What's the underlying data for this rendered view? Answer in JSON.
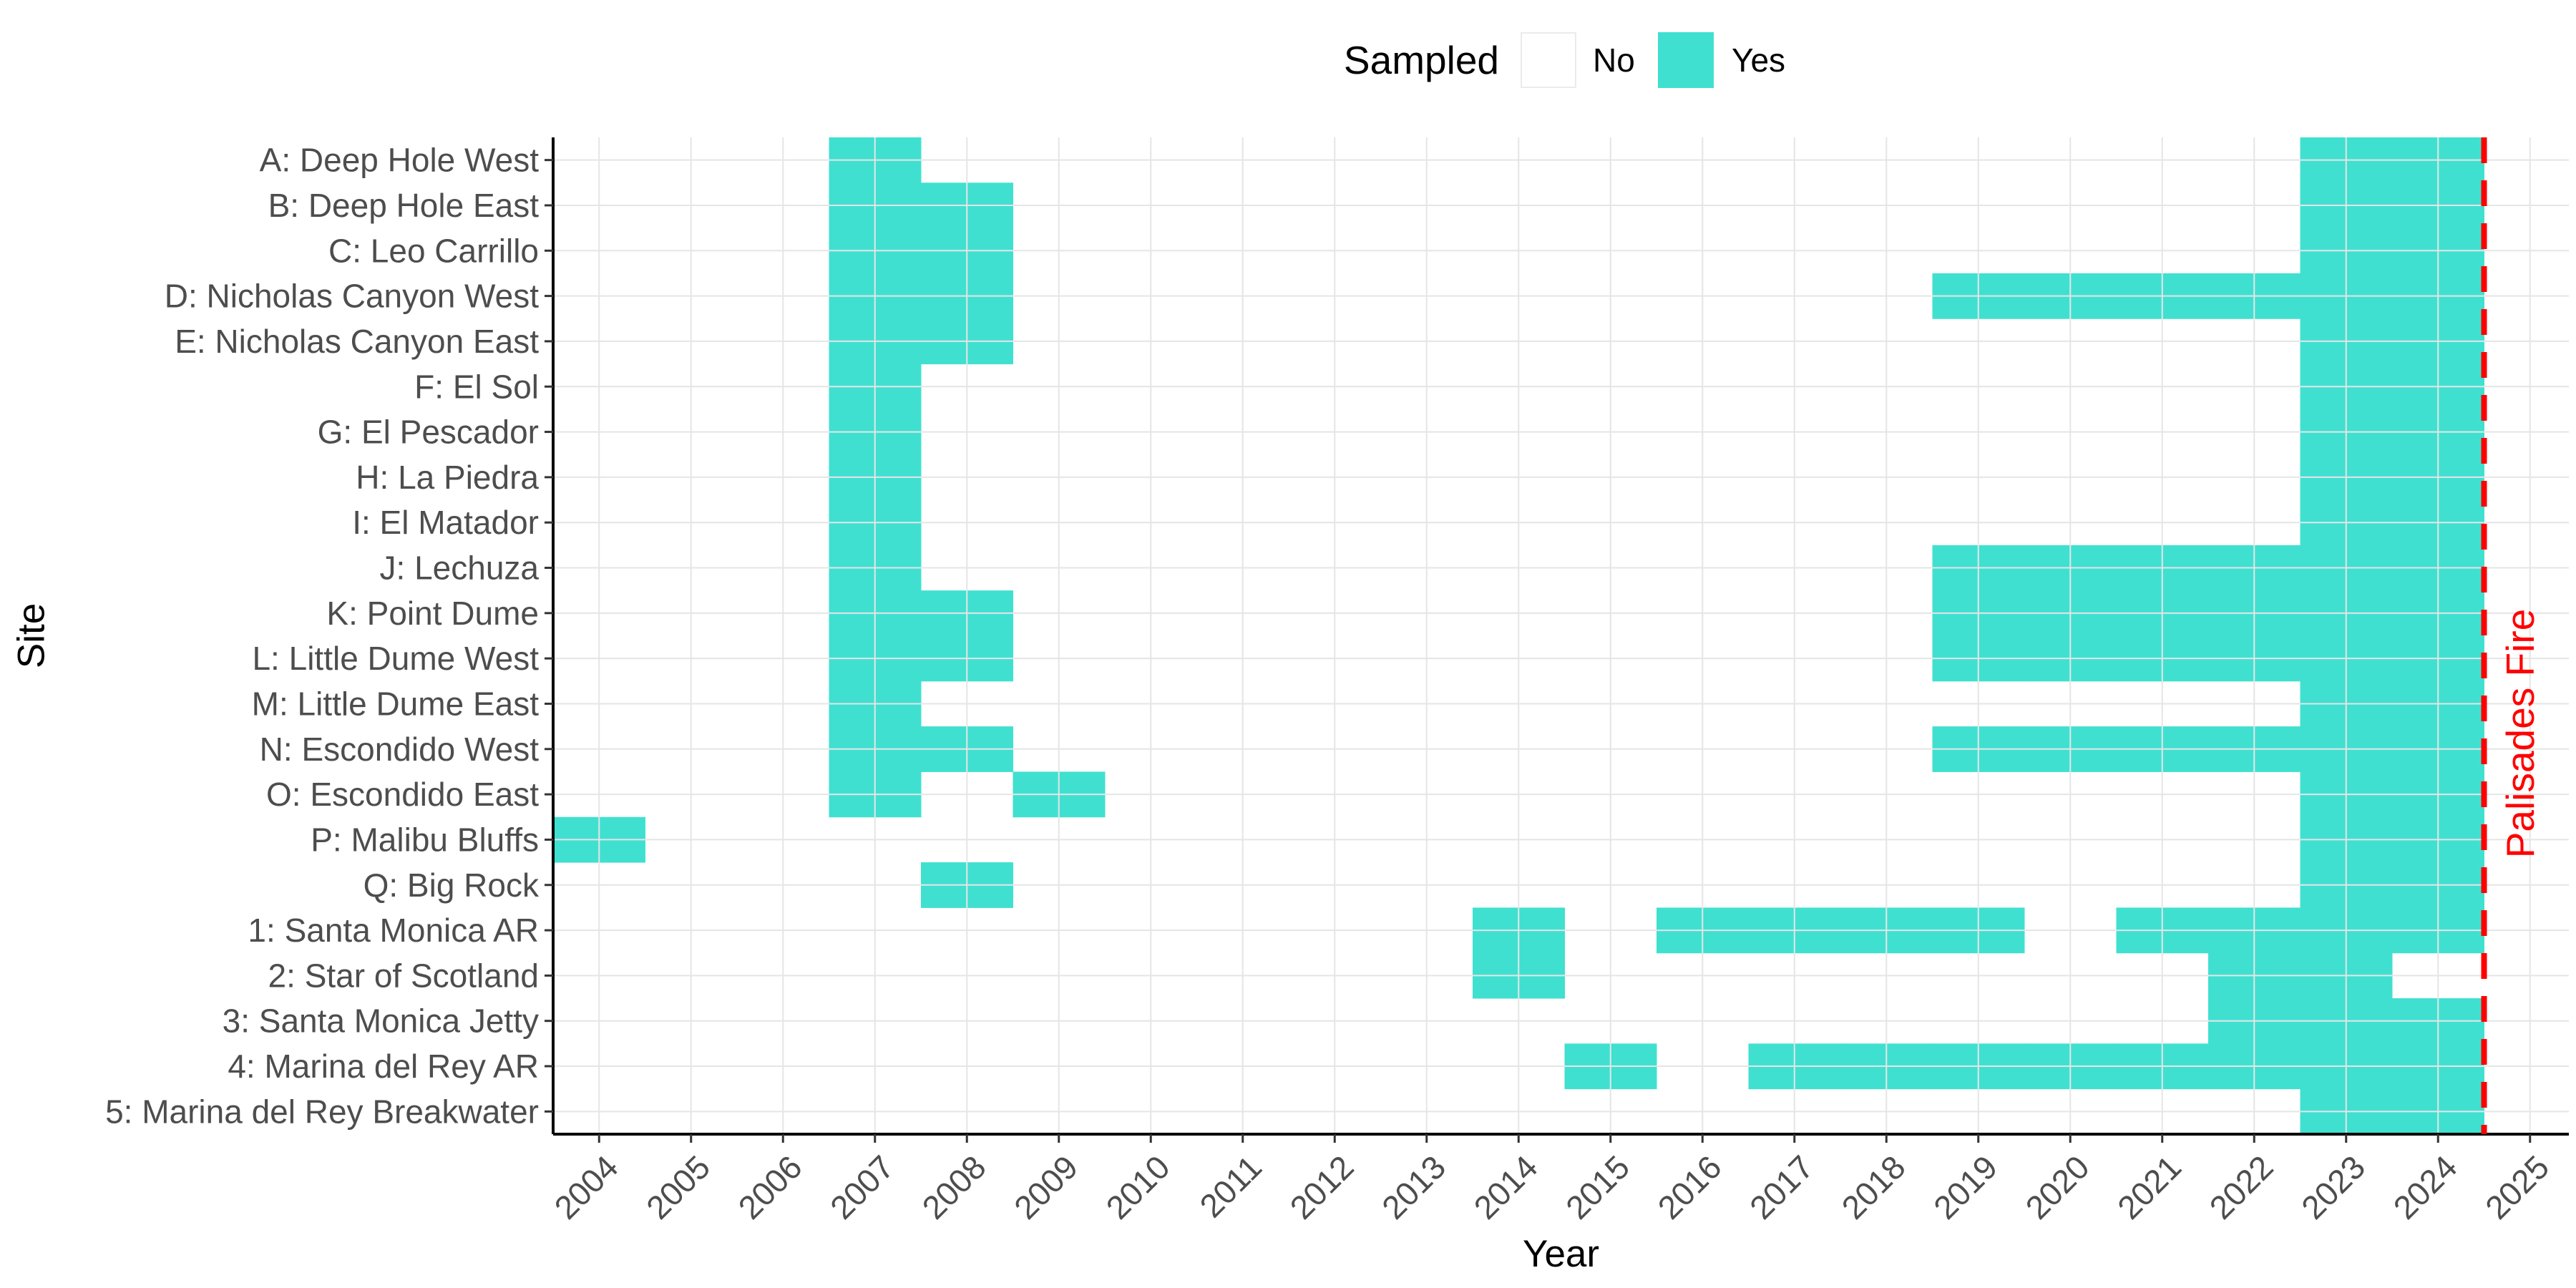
{
  "chart_data": {
    "type": "heatmap",
    "title": "",
    "xlabel": "Year",
    "ylabel": "Site",
    "x": [
      2004,
      2005,
      2006,
      2007,
      2008,
      2009,
      2010,
      2011,
      2012,
      2013,
      2014,
      2015,
      2016,
      2017,
      2018,
      2019,
      2020,
      2021,
      2022,
      2023,
      2024,
      2025
    ],
    "xlim": [
      2003.5,
      2025.5
    ],
    "legend": {
      "title": "Sampled",
      "position": "top",
      "entries": [
        {
          "label": "No",
          "color": "#ffffff"
        },
        {
          "label": "Yes",
          "color": "#40e0d0"
        }
      ]
    },
    "colors": {
      "yes": "#40e0d0",
      "no": "#ffffff",
      "grid": "#e5e5e5",
      "axis": "#000000",
      "annotation": "#ff0000"
    },
    "grid": true,
    "sites": [
      {
        "name": "A: Deep Hole West",
        "sampled_years": [
          2007,
          2023,
          2024
        ]
      },
      {
        "name": "B: Deep Hole East",
        "sampled_years": [
          2007,
          2008,
          2023,
          2024
        ]
      },
      {
        "name": "C: Leo Carrillo",
        "sampled_years": [
          2007,
          2008,
          2023,
          2024
        ]
      },
      {
        "name": "D: Nicholas Canyon West",
        "sampled_years": [
          2007,
          2008,
          2019,
          2020,
          2021,
          2022,
          2023,
          2024
        ]
      },
      {
        "name": "E: Nicholas Canyon East",
        "sampled_years": [
          2007,
          2008,
          2023,
          2024
        ]
      },
      {
        "name": "F: El Sol",
        "sampled_years": [
          2007,
          2023,
          2024
        ]
      },
      {
        "name": "G: El Pescador",
        "sampled_years": [
          2007,
          2023,
          2024
        ]
      },
      {
        "name": "H: La Piedra",
        "sampled_years": [
          2007,
          2023,
          2024
        ]
      },
      {
        "name": "I: El Matador",
        "sampled_years": [
          2007,
          2023,
          2024
        ]
      },
      {
        "name": "J: Lechuza",
        "sampled_years": [
          2007,
          2019,
          2020,
          2021,
          2022,
          2023,
          2024
        ]
      },
      {
        "name": "K: Point Dume",
        "sampled_years": [
          2007,
          2008,
          2019,
          2020,
          2021,
          2022,
          2023,
          2024
        ]
      },
      {
        "name": "L: Little Dume West",
        "sampled_years": [
          2007,
          2008,
          2019,
          2020,
          2021,
          2022,
          2023,
          2024
        ]
      },
      {
        "name": "M: Little Dume East",
        "sampled_years": [
          2007,
          2023,
          2024
        ]
      },
      {
        "name": "N: Escondido West",
        "sampled_years": [
          2007,
          2008,
          2019,
          2020,
          2021,
          2022,
          2023,
          2024
        ]
      },
      {
        "name": "O: Escondido East",
        "sampled_years": [
          2007,
          2009,
          2023,
          2024
        ]
      },
      {
        "name": "P: Malibu Bluffs",
        "sampled_years": [
          2004,
          2023,
          2024
        ]
      },
      {
        "name": "Q: Big Rock",
        "sampled_years": [
          2008,
          2023,
          2024
        ]
      },
      {
        "name": "1: Santa Monica AR",
        "sampled_years": [
          2014,
          2016,
          2017,
          2018,
          2019,
          2021,
          2022,
          2023,
          2024
        ]
      },
      {
        "name": "2: Star of Scotland",
        "sampled_years": [
          2014,
          2022,
          2023
        ]
      },
      {
        "name": "3: Santa Monica Jetty",
        "sampled_years": [
          2022,
          2023,
          2024
        ]
      },
      {
        "name": "4: Marina del Rey AR",
        "sampled_years": [
          2015,
          2017,
          2018,
          2019,
          2020,
          2021,
          2022,
          2023,
          2024
        ]
      },
      {
        "name": "5: Marina del Rey Breakwater",
        "sampled_years": [
          2023,
          2024
        ]
      }
    ],
    "annotations": [
      {
        "type": "vline",
        "x": 2024.5,
        "label": "Palisades Fire",
        "color": "#ff0000",
        "style": "dashed"
      }
    ]
  }
}
